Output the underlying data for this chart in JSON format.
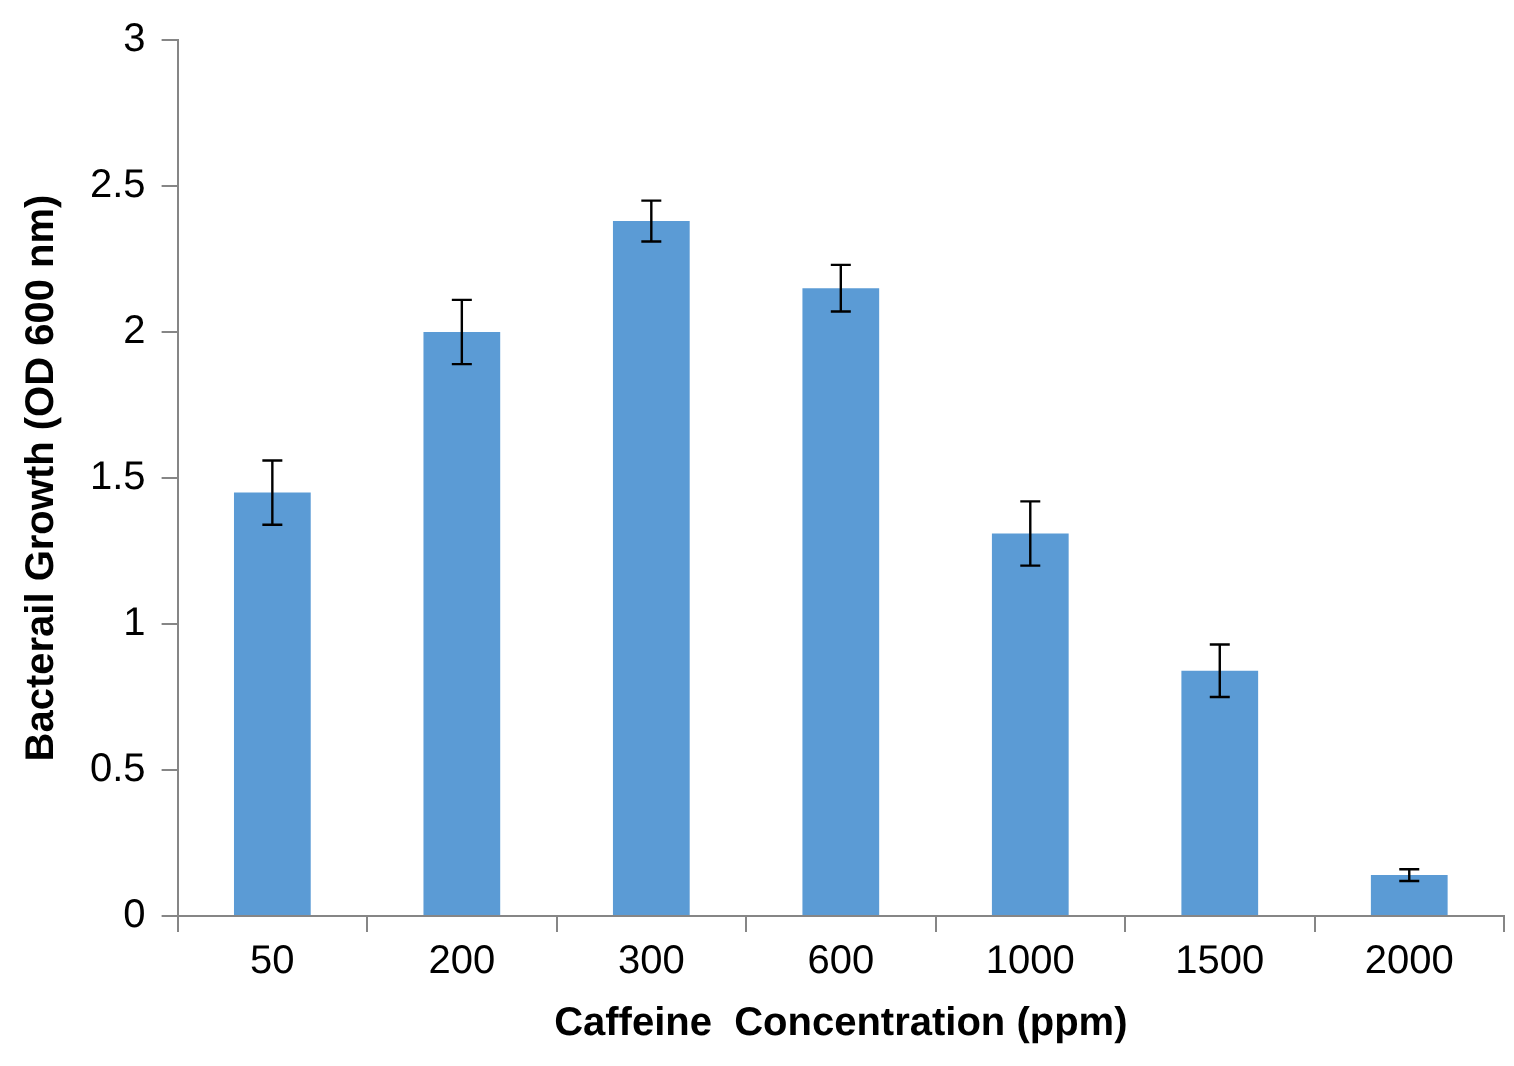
{
  "chart_data": {
    "type": "bar",
    "xlabel": "Caffeine  Concentration (ppm)",
    "ylabel": "Bacterail Growth (OD 600 nm)",
    "categories": [
      "50",
      "200",
      "300",
      "600",
      "1000",
      "1500",
      "2000"
    ],
    "values": [
      1.45,
      2.0,
      2.38,
      2.15,
      1.31,
      0.84,
      0.14
    ],
    "errors": [
      0.11,
      0.11,
      0.07,
      0.08,
      0.11,
      0.09,
      0.02
    ],
    "color": "#5b9bd5",
    "ylim": [
      0,
      3
    ],
    "yticks": [
      0,
      {
        "value": 0.5,
        "label": "0.5"
      },
      1,
      {
        "value": 1.5,
        "label": "1.5"
      },
      2,
      {
        "value": 2.5,
        "label": "2.5"
      },
      3
    ],
    "grid": false,
    "legend": false
  }
}
